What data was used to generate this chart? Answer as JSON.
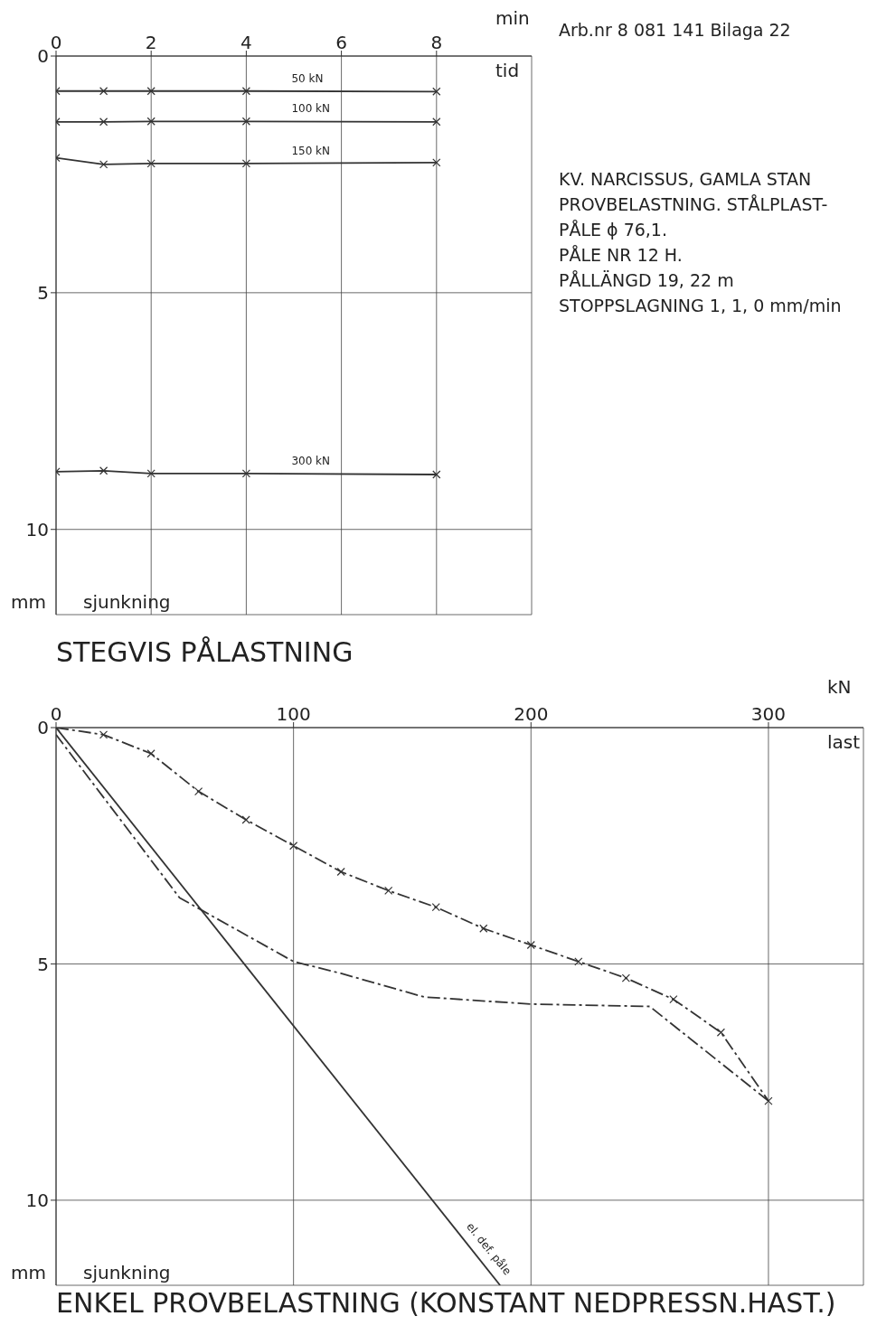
{
  "chart_data": [
    {
      "type": "line",
      "title": "STEGVIS PÅLASTNING",
      "xlabel": "tid",
      "ylabel": "sjunkning",
      "xlim": [
        0,
        10
      ],
      "xticks": [
        0,
        2,
        4,
        6,
        8
      ],
      "ylim": [
        11.8,
        0
      ],
      "yticks": [
        0,
        5,
        10
      ],
      "grid": true,
      "marker": "cross",
      "line_style": "solid",
      "series": [
        {
          "name": "50 kN",
          "color": "#333333",
          "x": [
            0,
            1,
            2,
            4,
            8
          ],
          "values": [
            0.74,
            0.74,
            0.74,
            0.74,
            0.75
          ]
        },
        {
          "name": "100 kN",
          "color": "#333333",
          "x": [
            0,
            1,
            2,
            4,
            8
          ],
          "values": [
            1.39,
            1.39,
            1.38,
            1.38,
            1.39
          ]
        },
        {
          "name": "150 kN",
          "color": "#333333",
          "x": [
            0,
            1,
            2,
            4,
            8
          ],
          "values": [
            2.15,
            2.29,
            2.27,
            2.27,
            2.25
          ]
        },
        {
          "name": "300 kN",
          "color": "#333333",
          "x": [
            0,
            1,
            2,
            4,
            8
          ],
          "values": [
            8.78,
            8.76,
            8.82,
            8.82,
            8.84
          ]
        }
      ],
      "annotations": [
        "min",
        "mm",
        "Arb.nr 8 081 141  Bilaga 22",
        "KV. NARCISSUS, GAMLA STAN",
        "PROVBELASTNING. STÅLPLAST-",
        "PÅLE ϕ 76,1.",
        "PÅLE  NR 12 H.",
        "PÅLLÄNGD  19, 22 m",
        "STOPPSLAGNING  1, 1, 0 mm/min"
      ]
    },
    {
      "type": "line",
      "title": "ENKEL PROVBELASTNING (KONSTANT NEDPRESSN.HAST.)",
      "xlabel": "last",
      "ylabel": "sjunkning",
      "xlim": [
        0,
        340
      ],
      "xticks": [
        0,
        100,
        200,
        300
      ],
      "ylim": [
        11.8,
        0
      ],
      "yticks": [
        0,
        5,
        10
      ],
      "grid": true,
      "series": [
        {
          "color": "#333333",
          "marker": "cross",
          "line_style": "dashed",
          "x": [
            0,
            20,
            40,
            60,
            80,
            100,
            120,
            140,
            160,
            180,
            200,
            220,
            240,
            260,
            280,
            300
          ],
          "values": [
            0,
            0.15,
            0.55,
            1.35,
            1.95,
            2.5,
            3.05,
            3.45,
            3.8,
            4.25,
            4.6,
            4.95,
            5.3,
            5.75,
            6.45,
            7.9
          ]
        },
        {
          "color": "#333333",
          "marker": "none",
          "line_style": "dashed",
          "x": [
            300,
            250,
            200,
            155,
            120,
            100,
            52,
            0
          ],
          "values": [
            7.9,
            5.9,
            5.85,
            5.7,
            5.2,
            4.95,
            3.6,
            0.15
          ]
        },
        {
          "color": "#333333",
          "marker": "none",
          "line_style": "solid",
          "x": [
            0,
            187
          ],
          "values": [
            0,
            11.8
          ]
        }
      ],
      "annotations": [
        "kN",
        "mm",
        {
          "text": "el. def. påle",
          "x": 178,
          "y": 11.23
        }
      ]
    }
  ]
}
